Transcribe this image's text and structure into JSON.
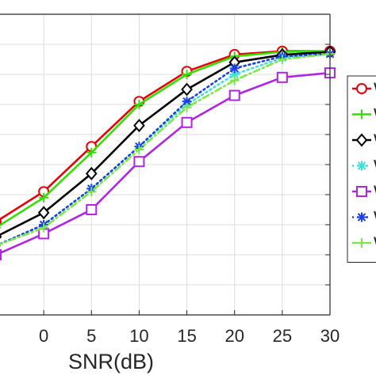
{
  "chart_data": {
    "type": "line",
    "title": "",
    "xlabel": "SNR(dB)",
    "ylabel": "",
    "x": [
      -5,
      0,
      5,
      10,
      15,
      20,
      25,
      30
    ],
    "xlim": [
      -5,
      30
    ],
    "xticks": [
      "0",
      "5",
      "10",
      "15",
      "20",
      "25",
      "30"
    ],
    "ylim": [
      0,
      1
    ],
    "grid": true,
    "legend_position": "right",
    "series": [
      {
        "name": "W",
        "color": "#e8000b",
        "marker": "circle",
        "line": "solid",
        "values": [
          0.31,
          0.41,
          0.56,
          0.71,
          0.81,
          0.866,
          0.877,
          0.877
        ]
      },
      {
        "name": "W",
        "color": "#32e000",
        "marker": "plus",
        "line": "solid",
        "values": [
          0.29,
          0.39,
          0.54,
          0.7,
          0.8,
          0.86,
          0.875,
          0.877
        ]
      },
      {
        "name": "W",
        "color": "#000000",
        "marker": "diamond",
        "line": "solid",
        "values": [
          0.26,
          0.34,
          0.47,
          0.63,
          0.75,
          0.84,
          0.865,
          0.875
        ]
      },
      {
        "name": "W",
        "color": "#3ee0d8",
        "marker": "asterisk",
        "line": "dotted",
        "values": [
          0.23,
          0.3,
          0.42,
          0.56,
          0.7,
          0.8,
          0.855,
          0.868
        ]
      },
      {
        "name": "W",
        "color": "#b026e0",
        "marker": "square",
        "line": "solid",
        "values": [
          0.2,
          0.27,
          0.35,
          0.51,
          0.64,
          0.73,
          0.79,
          0.805
        ]
      },
      {
        "name": "W",
        "color": "#1a3fe8",
        "marker": "asterisk",
        "line": "dotted",
        "values": [
          0.23,
          0.3,
          0.42,
          0.56,
          0.71,
          0.82,
          0.86,
          0.868
        ]
      },
      {
        "name": "W",
        "color": "#7be84a",
        "marker": "plus",
        "line": "dashdot",
        "values": [
          0.23,
          0.29,
          0.41,
          0.55,
          0.69,
          0.78,
          0.85,
          0.868
        ]
      }
    ]
  }
}
